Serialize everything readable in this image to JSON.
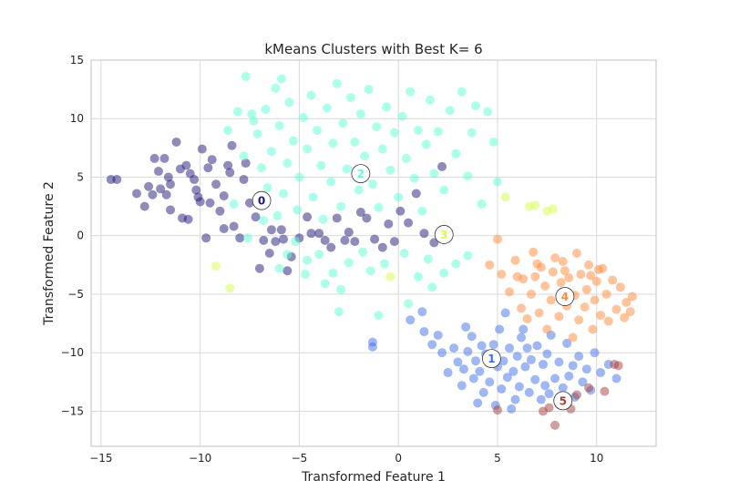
{
  "chart_data": {
    "type": "scatter",
    "title": "kMeans Clusters with Best K= 6",
    "xlabel": "Transformed Feature 1",
    "ylabel": "Transformed Feature 2",
    "xlim": [
      -15.5,
      13
    ],
    "ylim": [
      -18,
      15
    ],
    "xticks": [
      -15,
      -10,
      -5,
      0,
      5,
      10
    ],
    "yticks": [
      -15,
      -10,
      -5,
      0,
      5,
      10,
      15
    ],
    "grid": true,
    "point_alpha": 0.5,
    "clusters": [
      {
        "label": "0",
        "color": "#1f1a7a",
        "centroid": [
          -6.9,
          3.0
        ],
        "points": [
          [
            -14.5,
            4.8
          ],
          [
            -14.2,
            4.8
          ],
          [
            -13.2,
            3.6
          ],
          [
            -12.8,
            2.5
          ],
          [
            -12.6,
            4.2
          ],
          [
            -12.4,
            3.5
          ],
          [
            -12.3,
            6.6
          ],
          [
            -12.1,
            5.5
          ],
          [
            -12.0,
            4.0
          ],
          [
            -11.8,
            6.6
          ],
          [
            -11.7,
            3.5
          ],
          [
            -11.6,
            5.0
          ],
          [
            -11.5,
            2.2
          ],
          [
            -11.5,
            4.4
          ],
          [
            -11.2,
            8.0
          ],
          [
            -11.0,
            5.7
          ],
          [
            -10.9,
            1.5
          ],
          [
            -10.7,
            6.0
          ],
          [
            -10.6,
            1.4
          ],
          [
            -10.5,
            5.3
          ],
          [
            -10.3,
            4.8
          ],
          [
            -10.2,
            3.9
          ],
          [
            -10.1,
            3.3
          ],
          [
            -10.0,
            2.9
          ],
          [
            -9.9,
            7.4
          ],
          [
            -9.6,
            5.8
          ],
          [
            -9.5,
            2.8
          ],
          [
            -9.4,
            6.5
          ],
          [
            -9.2,
            4.4
          ],
          [
            -9.0,
            2.1
          ],
          [
            -8.8,
            3.4
          ],
          [
            -8.5,
            5.4
          ],
          [
            -8.6,
            6.0
          ],
          [
            -8.4,
            7.7
          ],
          [
            -8.3,
            0.8
          ],
          [
            -8.0,
            -0.2
          ],
          [
            -7.8,
            4.8
          ],
          [
            -7.7,
            6.2
          ],
          [
            -7.5,
            2.8
          ],
          [
            -7.2,
            1.6
          ],
          [
            -7.0,
            -2.8
          ],
          [
            -6.8,
            -0.4
          ],
          [
            -6.5,
            -1.5
          ],
          [
            -6.4,
            0.5
          ],
          [
            -6.2,
            -0.5
          ],
          [
            -5.9,
            0.5
          ],
          [
            -5.8,
            -0.3
          ],
          [
            -5.6,
            -3.0
          ],
          [
            -5.4,
            -1.8
          ],
          [
            -5.0,
            -0.2
          ],
          [
            -4.6,
            1.6
          ],
          [
            -4.4,
            0.2
          ],
          [
            -4.0,
            0.2
          ],
          [
            -3.7,
            -0.4
          ],
          [
            -3.4,
            -1.0
          ],
          [
            -3.1,
            1.5
          ],
          [
            -2.7,
            -0.4
          ],
          [
            -2.5,
            0.3
          ],
          [
            -2.2,
            -0.5
          ],
          [
            -1.9,
            2.0
          ],
          [
            -1.6,
            1.5
          ],
          [
            -1.2,
            -0.3
          ],
          [
            -0.8,
            -1.0
          ],
          [
            -0.5,
            1.0
          ],
          [
            -0.2,
            -0.5
          ],
          [
            0.1,
            2.1
          ],
          [
            0.5,
            1.1
          ],
          [
            0.9,
            3.6
          ],
          [
            1.3,
            0.2
          ],
          [
            2.2,
            5.9
          ],
          [
            1.8,
            -0.6
          ],
          [
            -8.8,
            0.6
          ],
          [
            -9.7,
            -0.2
          ]
        ]
      },
      {
        "label": "1",
        "color": "#3f6fe8",
        "centroid": [
          4.7,
          -10.5
        ],
        "points": [
          [
            -1.3,
            -9.5
          ],
          [
            -1.3,
            -9.1
          ],
          [
            0.6,
            -7.2
          ],
          [
            1.2,
            -6.5
          ],
          [
            1.3,
            -8.2
          ],
          [
            1.7,
            -9.3
          ],
          [
            2.2,
            -10.0
          ],
          [
            2.5,
            -11.7
          ],
          [
            2.8,
            -9.6
          ],
          [
            3.0,
            -10.8
          ],
          [
            3.2,
            -12.8
          ],
          [
            3.3,
            -11.4
          ],
          [
            3.5,
            -9.9
          ],
          [
            3.7,
            -8.6
          ],
          [
            3.8,
            -12.2
          ],
          [
            3.9,
            -10.7
          ],
          [
            4.1,
            -11.6
          ],
          [
            4.2,
            -9.4
          ],
          [
            4.3,
            -13.4
          ],
          [
            4.4,
            -10.1
          ],
          [
            4.6,
            -12.5
          ],
          [
            4.8,
            -9.3
          ],
          [
            4.9,
            -14.5
          ],
          [
            5.0,
            -11.2
          ],
          [
            5.1,
            -8.0
          ],
          [
            5.2,
            -13.1
          ],
          [
            5.3,
            -10.7
          ],
          [
            5.4,
            -6.6
          ],
          [
            5.5,
            -12.1
          ],
          [
            5.6,
            -9.6
          ],
          [
            5.8,
            -11.6
          ],
          [
            5.9,
            -14.0
          ],
          [
            6.0,
            -10.3
          ],
          [
            6.1,
            -12.9
          ],
          [
            6.2,
            -8.7
          ],
          [
            6.4,
            -11.2
          ],
          [
            6.5,
            -9.6
          ],
          [
            6.6,
            -13.4
          ],
          [
            6.7,
            -10.6
          ],
          [
            6.9,
            -12.3
          ],
          [
            7.0,
            -9.4
          ],
          [
            7.2,
            -14.0
          ],
          [
            7.3,
            -11.0
          ],
          [
            7.4,
            -12.8
          ],
          [
            7.5,
            -10.1
          ],
          [
            7.6,
            -13.5
          ],
          [
            7.7,
            -8.5
          ],
          [
            7.9,
            -12.2
          ],
          [
            8.1,
            -10.8
          ],
          [
            8.3,
            -13.0
          ],
          [
            8.5,
            -9.2
          ],
          [
            8.6,
            -12.0
          ],
          [
            8.8,
            -11.1
          ],
          [
            8.9,
            -13.8
          ],
          [
            9.1,
            -10.3
          ],
          [
            9.3,
            -12.5
          ],
          [
            9.5,
            -11.4
          ],
          [
            9.7,
            -13.2
          ],
          [
            9.9,
            -10.0
          ],
          [
            10.2,
            -11.7
          ],
          [
            10.6,
            -11.0
          ],
          [
            11.0,
            -12.2
          ],
          [
            2.0,
            -8.5
          ],
          [
            3.4,
            -7.8
          ],
          [
            6.3,
            -8.0
          ],
          [
            5.7,
            -14.8
          ],
          [
            4.0,
            -14.3
          ],
          [
            8.2,
            -14.5
          ]
        ]
      },
      {
        "label": "2",
        "color": "#5cffd6",
        "centroid": [
          -1.9,
          5.3
        ],
        "points": [
          [
            -8.1,
            10.6
          ],
          [
            -8.6,
            9.0
          ],
          [
            -7.8,
            6.8
          ],
          [
            -7.4,
            10.4
          ],
          [
            -7.1,
            8.7
          ],
          [
            -6.9,
            5.8
          ],
          [
            -6.7,
            10.8
          ],
          [
            -6.6,
            4.1
          ],
          [
            -6.4,
            7.2
          ],
          [
            -6.2,
            12.6
          ],
          [
            -6.0,
            9.4
          ],
          [
            -5.8,
            3.6
          ],
          [
            -5.6,
            6.2
          ],
          [
            -5.5,
            11.4
          ],
          [
            -5.3,
            8.1
          ],
          [
            -5.1,
            2.2
          ],
          [
            -5.0,
            5.0
          ],
          [
            -4.8,
            10.1
          ],
          [
            -4.6,
            7.4
          ],
          [
            -4.4,
            12.0
          ],
          [
            -4.3,
            3.3
          ],
          [
            -4.1,
            9.0
          ],
          [
            -3.9,
            6.0
          ],
          [
            -3.8,
            1.4
          ],
          [
            -3.6,
            10.9
          ],
          [
            -3.4,
            4.6
          ],
          [
            -3.3,
            7.9
          ],
          [
            -3.1,
            13.0
          ],
          [
            -2.9,
            2.5
          ],
          [
            -2.8,
            9.6
          ],
          [
            -2.6,
            5.7
          ],
          [
            -2.4,
            11.8
          ],
          [
            -2.2,
            8.0
          ],
          [
            -2.0,
            3.9
          ],
          [
            -1.9,
            10.4
          ],
          [
            -1.7,
            6.8
          ],
          [
            -1.5,
            12.5
          ],
          [
            -1.3,
            4.4
          ],
          [
            -1.1,
            9.3
          ],
          [
            -1.0,
            2.4
          ],
          [
            -0.8,
            7.4
          ],
          [
            -0.6,
            11.0
          ],
          [
            -0.4,
            5.6
          ],
          [
            -0.2,
            8.8
          ],
          [
            0.0,
            3.3
          ],
          [
            0.2,
            10.2
          ],
          [
            0.4,
            6.6
          ],
          [
            0.6,
            12.3
          ],
          [
            0.8,
            4.9
          ],
          [
            1.0,
            9.0
          ],
          [
            1.2,
            2.1
          ],
          [
            1.4,
            7.8
          ],
          [
            1.6,
            11.6
          ],
          [
            1.8,
            5.3
          ],
          [
            2.0,
            8.9
          ],
          [
            2.3,
            3.9
          ],
          [
            2.6,
            10.7
          ],
          [
            2.9,
            7.0
          ],
          [
            3.2,
            12.3
          ],
          [
            3.5,
            5.1
          ],
          [
            3.7,
            8.8
          ],
          [
            3.9,
            11.1
          ],
          [
            4.2,
            2.7
          ],
          [
            4.5,
            10.6
          ],
          [
            4.8,
            8.0
          ],
          [
            5.0,
            4.6
          ],
          [
            -7.7,
            13.6
          ],
          [
            -5.9,
            13.4
          ],
          [
            -4.0,
            -1.6
          ],
          [
            -3.3,
            -3.2
          ],
          [
            -2.5,
            -2.3
          ],
          [
            -1.8,
            -1.4
          ],
          [
            -1.4,
            -3.0
          ],
          [
            -0.7,
            -2.4
          ],
          [
            0.3,
            -1.5
          ],
          [
            1.0,
            -3.5
          ],
          [
            1.7,
            -4.4
          ],
          [
            2.3,
            -3.2
          ],
          [
            2.9,
            -2.4
          ],
          [
            3.5,
            -1.7
          ],
          [
            -5.6,
            -1.6
          ],
          [
            -6.0,
            -2.8
          ],
          [
            -4.7,
            -3.3
          ],
          [
            -3.7,
            -4.1
          ],
          [
            -2.9,
            -4.6
          ],
          [
            -1.0,
            -6.8
          ],
          [
            -3.0,
            -6.5
          ],
          [
            -6.8,
            1.3
          ],
          [
            -7.3,
            9.8
          ],
          [
            -6.1,
            1.7
          ],
          [
            -5.2,
            -0.5
          ],
          [
            -4.6,
            -2.1
          ],
          [
            1.5,
            -2.0
          ],
          [
            -7.1,
            3.2
          ],
          [
            -7.6,
            -0.2
          ],
          [
            -8.3,
            2.7
          ],
          [
            0.5,
            -5.8
          ]
        ]
      },
      {
        "label": "3",
        "color": "#d5ff4a",
        "centroid": [
          2.3,
          0.1
        ],
        "points": [
          [
            -9.2,
            -2.6
          ],
          [
            -8.5,
            -4.5
          ],
          [
            -0.4,
            -3.5
          ],
          [
            5.4,
            3.3
          ],
          [
            6.6,
            2.5
          ],
          [
            6.9,
            2.6
          ],
          [
            7.8,
            2.3
          ],
          [
            7.5,
            2.1
          ]
        ]
      },
      {
        "label": "4",
        "color": "#ff8a3a",
        "centroid": [
          8.4,
          -5.2
        ],
        "points": [
          [
            4.6,
            -2.5
          ],
          [
            5.0,
            -0.3
          ],
          [
            5.2,
            -3.3
          ],
          [
            5.6,
            -4.8
          ],
          [
            5.9,
            -2.1
          ],
          [
            6.2,
            -6.2
          ],
          [
            6.3,
            -3.7
          ],
          [
            6.5,
            -7.1
          ],
          [
            6.7,
            -5.0
          ],
          [
            6.8,
            -1.4
          ],
          [
            6.9,
            -3.5
          ],
          [
            7.1,
            -6.6
          ],
          [
            7.2,
            -2.7
          ],
          [
            7.4,
            -4.3
          ],
          [
            7.5,
            -8.0
          ],
          [
            7.7,
            -5.5
          ],
          [
            7.8,
            -3.1
          ],
          [
            7.9,
            -1.9
          ],
          [
            8.1,
            -6.9
          ],
          [
            8.2,
            -4.0
          ],
          [
            8.3,
            -2.2
          ],
          [
            8.5,
            -6.0
          ],
          [
            8.6,
            -3.6
          ],
          [
            8.8,
            -8.7
          ],
          [
            8.9,
            -5.1
          ],
          [
            9.0,
            -1.5
          ],
          [
            9.1,
            -7.2
          ],
          [
            9.2,
            -3.3
          ],
          [
            9.4,
            -6.1
          ],
          [
            9.5,
            -4.6
          ],
          [
            9.6,
            -2.5
          ],
          [
            9.8,
            -8.0
          ],
          [
            9.9,
            -5.5
          ],
          [
            10.0,
            -3.9
          ],
          [
            10.2,
            -6.8
          ],
          [
            10.3,
            -2.8
          ],
          [
            10.5,
            -5.0
          ],
          [
            10.6,
            -7.3
          ],
          [
            10.8,
            -3.8
          ],
          [
            11.0,
            -6.3
          ],
          [
            11.2,
            -4.4
          ],
          [
            11.4,
            -7.0
          ],
          [
            11.5,
            -5.7
          ],
          [
            11.7,
            -6.5
          ],
          [
            11.8,
            -5.2
          ],
          [
            6.0,
            -3.5
          ],
          [
            7.0,
            -2.4
          ],
          [
            8.4,
            -3.0
          ],
          [
            9.7,
            -3.4
          ],
          [
            10.1,
            -2.9
          ]
        ]
      },
      {
        "label": "5",
        "color": "#a63d3d",
        "centroid": [
          8.3,
          -14.1
        ],
        "points": [
          [
            5.0,
            -14.9
          ],
          [
            7.3,
            -15.0
          ],
          [
            7.6,
            -14.7
          ],
          [
            7.9,
            -16.2
          ],
          [
            8.4,
            -14.5
          ],
          [
            8.7,
            -14.8
          ],
          [
            9.0,
            -13.6
          ],
          [
            10.4,
            -13.3
          ],
          [
            10.9,
            -11.0
          ],
          [
            11.1,
            -11.1
          ],
          [
            9.6,
            -13.0
          ],
          [
            8.1,
            -14.4
          ]
        ]
      }
    ]
  }
}
